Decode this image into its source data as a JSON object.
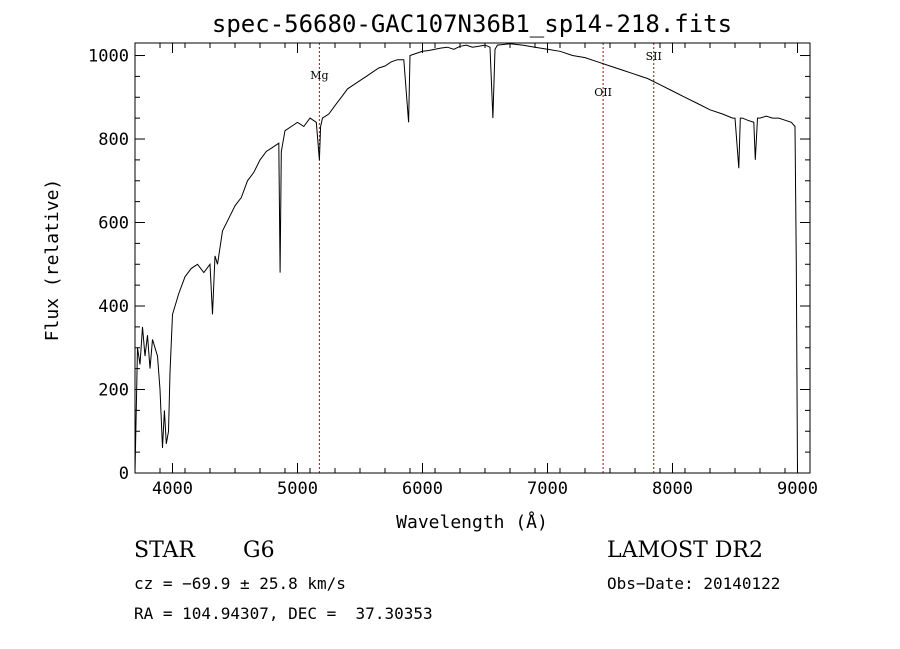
{
  "chart_data": {
    "type": "line",
    "title": "spec-56680-GAC107N36B1_sp14-218.fits",
    "xlabel": "Wavelength (Å)",
    "ylabel": "Flux (relative)",
    "xlim": [
      3700,
      9100
    ],
    "ylim": [
      0,
      1030
    ],
    "xticks": [
      4000,
      5000,
      6000,
      7000,
      8000,
      9000
    ],
    "yticks": [
      0,
      200,
      400,
      600,
      800,
      1000
    ],
    "series": [
      {
        "x": [
          3700,
          3720,
          3740,
          3760,
          3780,
          3800,
          3820,
          3840,
          3860,
          3880,
          3900,
          3920,
          3935,
          3950,
          3968,
          3980,
          4000,
          4050,
          4100,
          4150,
          4200,
          4250,
          4300,
          4320,
          4340,
          4360,
          4400,
          4450,
          4500,
          4550,
          4600,
          4650,
          4700,
          4750,
          4800,
          4850,
          4861,
          4870,
          4900,
          4950,
          5000,
          5050,
          5100,
          5150,
          5175,
          5185,
          5200,
          5250,
          5300,
          5350,
          5400,
          5450,
          5500,
          5550,
          5600,
          5650,
          5700,
          5750,
          5800,
          5850,
          5889,
          5900,
          5950,
          6000,
          6050,
          6100,
          6150,
          6200,
          6250,
          6300,
          6350,
          6400,
          6450,
          6500,
          6540,
          6563,
          6580,
          6600,
          6700,
          6800,
          6900,
          7000,
          7100,
          7200,
          7300,
          7400,
          7500,
          7600,
          7700,
          7800,
          7900,
          8000,
          8100,
          8200,
          8300,
          8400,
          8480,
          8500,
          8530,
          8542,
          8560,
          8600,
          8650,
          8662,
          8680,
          8700,
          8750,
          8800,
          8850,
          8900,
          8950,
          8980,
          8990,
          9000
        ],
        "values": [
          0,
          300,
          260,
          350,
          280,
          330,
          250,
          320,
          300,
          280,
          200,
          60,
          150,
          70,
          100,
          240,
          380,
          430,
          470,
          490,
          500,
          480,
          500,
          380,
          520,
          500,
          580,
          610,
          640,
          660,
          700,
          720,
          750,
          770,
          780,
          790,
          480,
          770,
          820,
          830,
          840,
          830,
          850,
          840,
          750,
          830,
          850,
          860,
          880,
          900,
          920,
          930,
          940,
          950,
          960,
          970,
          975,
          985,
          990,
          990,
          840,
          1000,
          1005,
          1010,
          1012,
          1015,
          1018,
          1020,
          1015,
          1022,
          1025,
          1020,
          1022,
          1025,
          1020,
          850,
          1015,
          1025,
          1028,
          1025,
          1020,
          1015,
          1010,
          1000,
          995,
          985,
          975,
          965,
          955,
          945,
          930,
          915,
          900,
          885,
          870,
          860,
          850,
          850,
          730,
          850,
          850,
          845,
          840,
          750,
          850,
          850,
          855,
          850,
          850,
          845,
          840,
          830,
          500,
          0
        ]
      }
    ],
    "lines": [
      {
        "label": "Mg",
        "x": 5175
      },
      {
        "label": "OII",
        "x": 7445
      },
      {
        "label": "SII",
        "x": 7850
      }
    ],
    "grid": false
  },
  "info": {
    "class_label": "STAR",
    "subclass_label": "G6",
    "survey": "LAMOST DR2",
    "cz": "cz = −69.9 ± 25.8 km/s",
    "obs_date": "Obs−Date: 20140122",
    "coords": "RA = 104.94307, DEC =  37.30353"
  }
}
